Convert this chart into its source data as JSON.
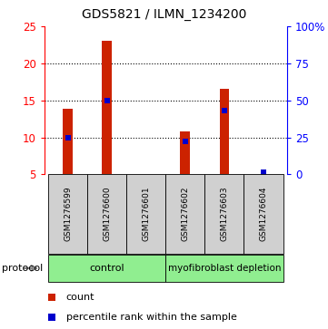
{
  "title": "GDS5821 / ILMN_1234200",
  "samples": [
    "GSM1276599",
    "GSM1276600",
    "GSM1276601",
    "GSM1276602",
    "GSM1276603",
    "GSM1276604"
  ],
  "counts": [
    13.9,
    23.0,
    5.05,
    10.75,
    16.6,
    5.1
  ],
  "percentile_ranks": [
    25.0,
    50.0,
    null,
    22.0,
    43.0,
    1.5
  ],
  "ylim_left": [
    5,
    25
  ],
  "ylim_right": [
    0,
    100
  ],
  "left_ticks": [
    5,
    10,
    15,
    20,
    25
  ],
  "right_ticks": [
    0,
    25,
    50,
    75,
    100
  ],
  "right_tick_labels": [
    "0",
    "25",
    "50",
    "75",
    "100%"
  ],
  "bar_color": "#CC2200",
  "percentile_color": "#0000CC",
  "sample_box_color": "#D0D0D0",
  "group_color": "#90EE90",
  "legend_count_label": "count",
  "legend_pct_label": "percentile rank within the sample",
  "protocol_label": "protocol",
  "bar_width": 0.25,
  "grid_lines": [
    10,
    15,
    20
  ]
}
